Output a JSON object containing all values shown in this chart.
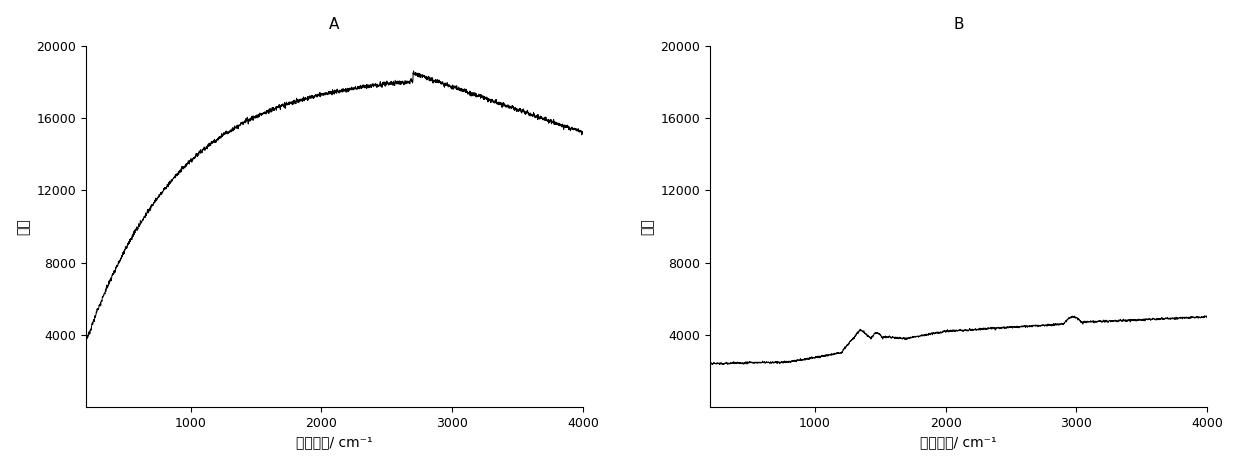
{
  "panel_A_label": "A",
  "panel_B_label": "B",
  "xlabel": "拉曼位移/ cm⁻¹",
  "ylabel": "强度",
  "xlim": [
    200,
    4000
  ],
  "ylim": [
    0,
    20000
  ],
  "yticks": [
    4000,
    8000,
    12000,
    16000,
    20000
  ],
  "xticks": [
    1000,
    2000,
    3000,
    4000
  ],
  "line_color": "#000000",
  "line_width": 0.7,
  "background_color": "#ffffff",
  "panel_label_fontsize": 11,
  "label_fontsize": 10,
  "tick_fontsize": 9
}
